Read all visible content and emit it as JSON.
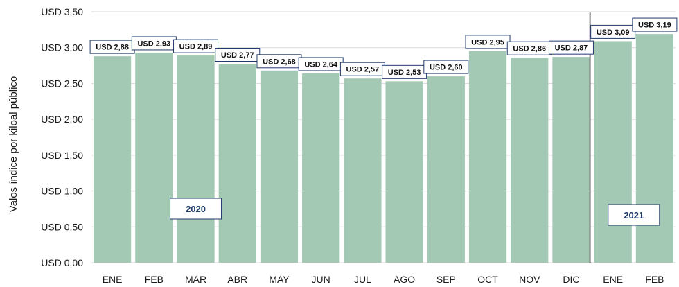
{
  "chart_data": {
    "type": "bar",
    "ylabel": "Valos índice por kiloal público",
    "xlabel": "",
    "ylim": [
      0,
      3.5
    ],
    "yticks": [
      0,
      0.5,
      1.0,
      1.5,
      2.0,
      2.5,
      3.0,
      3.5
    ],
    "ytick_labels": [
      "USD 0,00",
      "USD 0,50",
      "USD 1,00",
      "USD 1,50",
      "USD 2,00",
      "USD 2,50",
      "USD 3,00",
      "USD 3,50"
    ],
    "categories": [
      "ENE",
      "FEB",
      "MAR",
      "ABR",
      "MAY",
      "JUN",
      "JUL",
      "AGO",
      "SEP",
      "OCT",
      "NOV",
      "DIC",
      "ENE",
      "FEB"
    ],
    "values": [
      2.88,
      2.93,
      2.89,
      2.77,
      2.68,
      2.64,
      2.57,
      2.53,
      2.6,
      2.95,
      2.86,
      2.87,
      3.09,
      3.19
    ],
    "value_labels": [
      "USD 2,88",
      "USD 2,93",
      "USD 2,89",
      "USD 2,77",
      "USD 2,68",
      "USD 2,64",
      "USD 2,57",
      "USD 2,53",
      "USD 2,60",
      "USD 2,95",
      "USD 2,86",
      "USD 2,87",
      "USD 3,09",
      "USD 3,19"
    ],
    "year_groups": [
      {
        "label": "2020",
        "start_index": 0,
        "end_index": 11
      },
      {
        "label": "2021",
        "start_index": 12,
        "end_index": 13
      }
    ],
    "grid": true,
    "bar_color": "#a3c9b4",
    "grid_color": "#d9d9d9",
    "divider_color": "#000000",
    "label_border_color": "#1f3a6b",
    "year_text_color": "#1f3a6b"
  }
}
